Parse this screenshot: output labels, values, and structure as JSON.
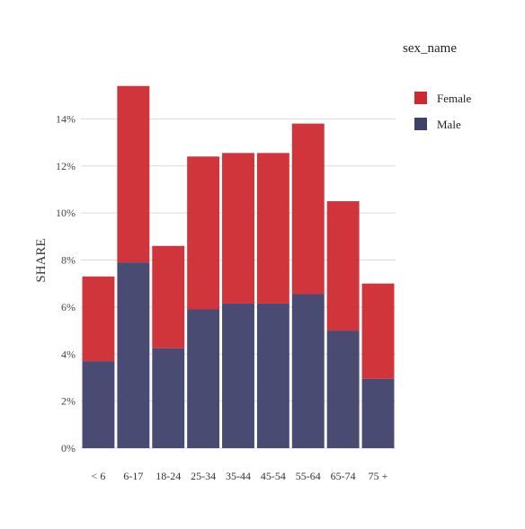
{
  "chart_data": {
    "type": "bar",
    "stacked": true,
    "categories": [
      "< 6",
      "6-17",
      "18-24",
      "25-34",
      "35-44",
      "45-54",
      "55-64",
      "65-74",
      "75 +"
    ],
    "series": [
      {
        "name": "Male",
        "color": "#3f416b",
        "values": [
          3.7,
          7.9,
          4.25,
          5.9,
          6.15,
          6.15,
          6.55,
          5.0,
          2.95
        ]
      },
      {
        "name": "Female",
        "color": "#cc2a2f",
        "values": [
          3.6,
          7.5,
          4.35,
          6.5,
          6.4,
          6.4,
          7.25,
          5.5,
          4.05
        ]
      }
    ],
    "ylabel": "SHARE",
    "xlabel": "",
    "ylim": [
      0,
      16
    ],
    "yticks": [
      0,
      2,
      4,
      6,
      8,
      10,
      12,
      14
    ],
    "ytick_labels": [
      "0%",
      "2%",
      "4%",
      "6%",
      "8%",
      "10%",
      "12%",
      "14%"
    ],
    "grid": "horizontal",
    "legend": {
      "title": "sex_name",
      "placement": "right",
      "entries": [
        {
          "label": "Female",
          "color": "#cc2a2f"
        },
        {
          "label": "Male",
          "color": "#3f416b"
        }
      ]
    }
  }
}
